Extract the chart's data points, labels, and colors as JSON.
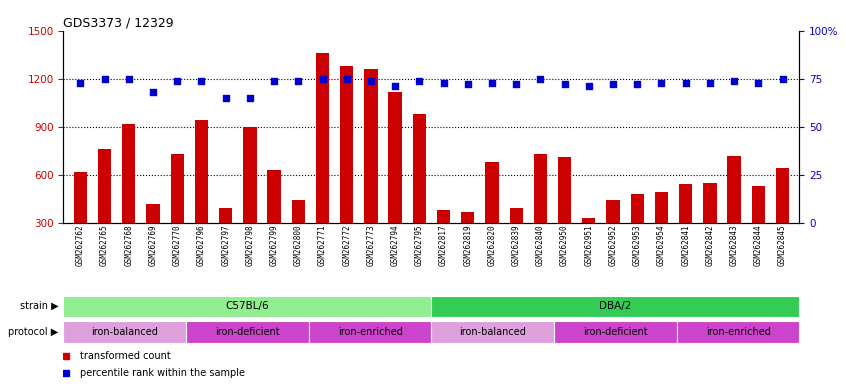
{
  "title": "GDS3373 / 12329",
  "samples": [
    "GSM262762",
    "GSM262765",
    "GSM262768",
    "GSM262769",
    "GSM262770",
    "GSM262796",
    "GSM262797",
    "GSM262798",
    "GSM262799",
    "GSM262800",
    "GSM262771",
    "GSM262772",
    "GSM262773",
    "GSM262794",
    "GSM262795",
    "GSM262817",
    "GSM262819",
    "GSM262820",
    "GSM262839",
    "GSM262840",
    "GSM262950",
    "GSM262951",
    "GSM262952",
    "GSM262953",
    "GSM262954",
    "GSM262841",
    "GSM262842",
    "GSM262843",
    "GSM262844",
    "GSM262845"
  ],
  "bar_values": [
    620,
    760,
    920,
    420,
    730,
    940,
    390,
    900,
    630,
    440,
    1360,
    1280,
    1260,
    1120,
    980,
    380,
    370,
    680,
    390,
    730,
    710,
    330,
    440,
    480,
    490,
    540,
    550,
    720,
    530,
    640
  ],
  "percentile_values": [
    73,
    75,
    75,
    68,
    74,
    74,
    65,
    65,
    74,
    74,
    75,
    75,
    74,
    71,
    74,
    73,
    72,
    73,
    72,
    75,
    72,
    71,
    72,
    72,
    73,
    73,
    73,
    74,
    73,
    75
  ],
  "bar_color": "#CC0000",
  "percentile_color": "#0000CC",
  "ylim_left": [
    300,
    1500
  ],
  "ylim_right": [
    0,
    100
  ],
  "yticks_left": [
    300,
    600,
    900,
    1200,
    1500
  ],
  "yticks_right": [
    0,
    25,
    50,
    75,
    100
  ],
  "hlines": [
    600,
    900,
    1200
  ],
  "strain_groups": [
    {
      "label": "C57BL/6",
      "start": 0,
      "end": 15,
      "color": "#90EE90"
    },
    {
      "label": "DBA/2",
      "start": 15,
      "end": 30,
      "color": "#33CC55"
    }
  ],
  "protocol_groups": [
    {
      "label": "iron-balanced",
      "start": 0,
      "end": 5,
      "color": "#DDA0DD"
    },
    {
      "label": "iron-deficient",
      "start": 5,
      "end": 10,
      "color": "#CC44CC"
    },
    {
      "label": "iron-enriched",
      "start": 10,
      "end": 15,
      "color": "#CC44CC"
    },
    {
      "label": "iron-balanced",
      "start": 15,
      "end": 20,
      "color": "#DDA0DD"
    },
    {
      "label": "iron-deficient",
      "start": 20,
      "end": 25,
      "color": "#CC44CC"
    },
    {
      "label": "iron-enriched",
      "start": 25,
      "end": 30,
      "color": "#CC44CC"
    }
  ],
  "legend_items": [
    {
      "label": "transformed count",
      "color": "#CC0000"
    },
    {
      "label": "percentile rank within the sample",
      "color": "#0000CC"
    }
  ],
  "bg_color": "#ffffff",
  "plot_bg": "#ffffff"
}
